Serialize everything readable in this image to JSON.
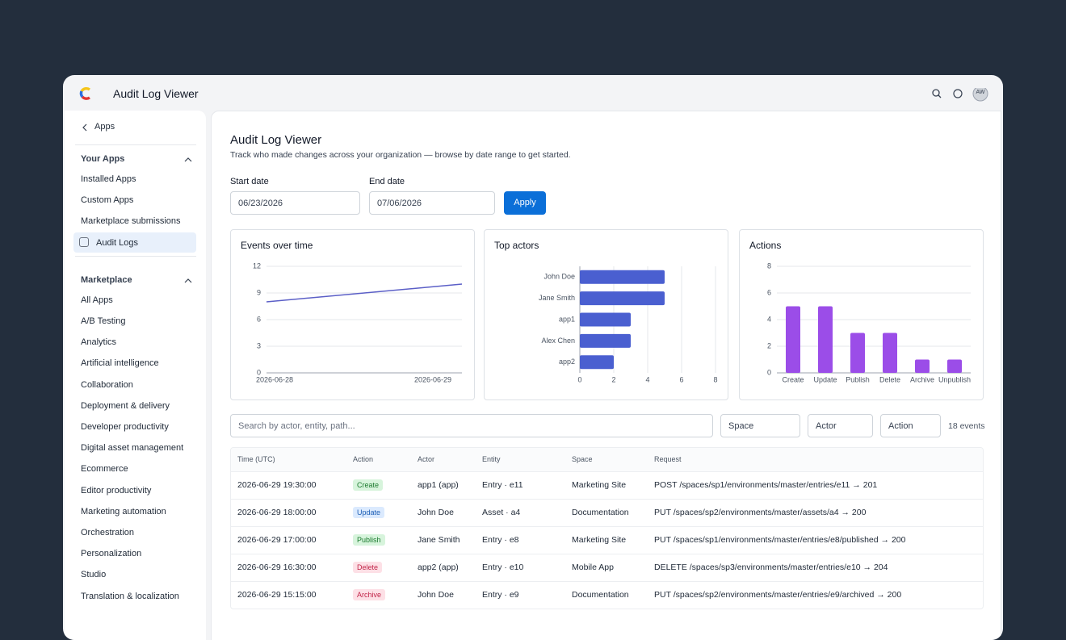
{
  "header": {
    "title": "Audit Log Viewer",
    "avatar": "AW"
  },
  "sidebar": {
    "back": "Apps",
    "sections": [
      {
        "title": "Your Apps",
        "items": [
          "Installed Apps",
          "Custom Apps",
          "Marketplace submissions",
          "Audit Logs"
        ]
      },
      {
        "title": "Marketplace",
        "items": [
          "All Apps",
          "A/B Testing",
          "Analytics",
          "Artificial intelligence",
          "Collaboration",
          "Deployment & delivery",
          "Developer productivity",
          "Digital asset management",
          "Ecommerce",
          "Editor productivity",
          "Marketing automation",
          "Orchestration",
          "Personalization",
          "Studio",
          "Translation & localization"
        ]
      }
    ]
  },
  "page": {
    "title": "Audit Log Viewer",
    "subtitle": "Track who made changes across your organization — browse by date range to get started.",
    "start_label": "Start date",
    "start_value": "06/23/2026",
    "end_label": "End date",
    "end_value": "07/06/2026",
    "apply": "Apply"
  },
  "filters": {
    "search_placeholder": "Search by actor, entity, path...",
    "selects": [
      "Space",
      "Actor",
      "Action"
    ],
    "count": "18 events"
  },
  "table": {
    "columns": [
      "Time (UTC)",
      "Action",
      "Actor",
      "Entity",
      "Space",
      "Request"
    ],
    "rows": [
      [
        "2026-06-29 19:30:00",
        "Create",
        "app1 (app)",
        "Entry · e11",
        "Marketing Site",
        "POST /spaces/sp1/environments/master/entries/e11 → 201"
      ],
      [
        "2026-06-29 18:00:00",
        "Update",
        "John Doe",
        "Asset · a4",
        "Documentation",
        "PUT /spaces/sp2/environments/master/assets/a4 → 200"
      ],
      [
        "2026-06-29 17:00:00",
        "Publish",
        "Jane Smith",
        "Entry · e8",
        "Marketing Site",
        "PUT /spaces/sp1/environments/master/entries/e8/published → 200"
      ],
      [
        "2026-06-29 16:30:00",
        "Delete",
        "app2 (app)",
        "Entry · e10",
        "Mobile App",
        "DELETE /spaces/sp3/environments/master/entries/e10 → 204"
      ],
      [
        "2026-06-29 15:15:00",
        "Archive",
        "John Doe",
        "Entry · e9",
        "Documentation",
        "PUT /spaces/sp2/environments/master/entries/e9/archived → 200"
      ]
    ]
  },
  "chart_data": [
    {
      "type": "line",
      "title": "Events over time",
      "categories": [
        "2026-06-28",
        "2026-06-29"
      ],
      "values": [
        8,
        10
      ],
      "color": "#5b5fc7",
      "ylim": [
        0,
        12
      ],
      "yticks": [
        0,
        3,
        6,
        9,
        12
      ],
      "grid": true
    },
    {
      "type": "bar",
      "orientation": "horizontal",
      "title": "Top actors",
      "categories": [
        "John Doe",
        "Jane Smith",
        "app1",
        "Alex Chen",
        "app2"
      ],
      "values": [
        5,
        5,
        3,
        3,
        2
      ],
      "color": "#4a5fd0",
      "xlim": [
        0,
        8
      ],
      "xticks": [
        0,
        2,
        4,
        6,
        8
      ],
      "grid": true
    },
    {
      "type": "bar",
      "title": "Actions",
      "categories": [
        "Create",
        "Update",
        "Publish",
        "Delete",
        "Archive",
        "Unpublish"
      ],
      "values": [
        5,
        5,
        3,
        3,
        1,
        1
      ],
      "color": "#9b4de8",
      "ylim": [
        0,
        8
      ],
      "yticks": [
        0,
        2,
        4,
        6,
        8
      ],
      "grid": true
    }
  ]
}
